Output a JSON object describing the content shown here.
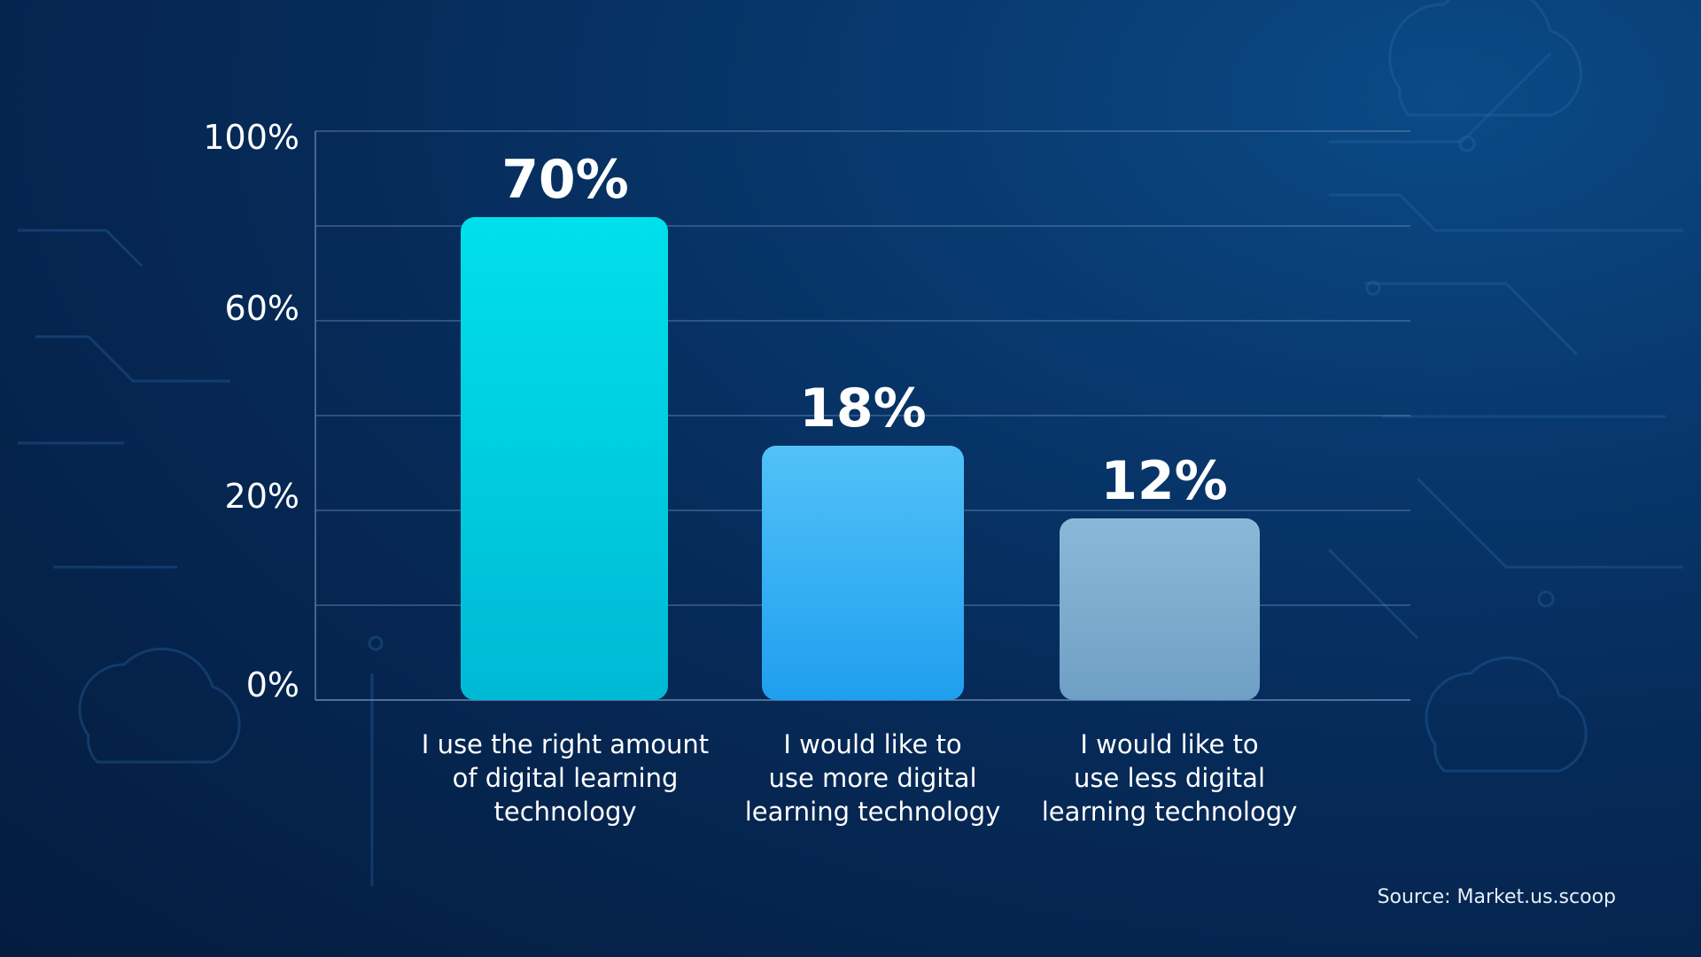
{
  "chart_data": {
    "type": "bar",
    "categories": [
      [
        "I use the right amount",
        "of digital learning",
        "technology"
      ],
      [
        "I would like to",
        "use more digital",
        "learning technology"
      ],
      [
        "I would like to",
        "use less digital",
        "learning technology"
      ]
    ],
    "values": [
      70,
      18,
      12
    ],
    "value_labels": [
      "70%",
      "18%",
      "12%"
    ],
    "y_tick_labels": [
      "100%",
      "60%",
      "20%",
      "0%"
    ],
    "grid": true,
    "bar_colors": [
      "#00d2e6",
      "#38b3f2",
      "#86b2d2"
    ]
  },
  "source": "Source: Market.us.scoop"
}
